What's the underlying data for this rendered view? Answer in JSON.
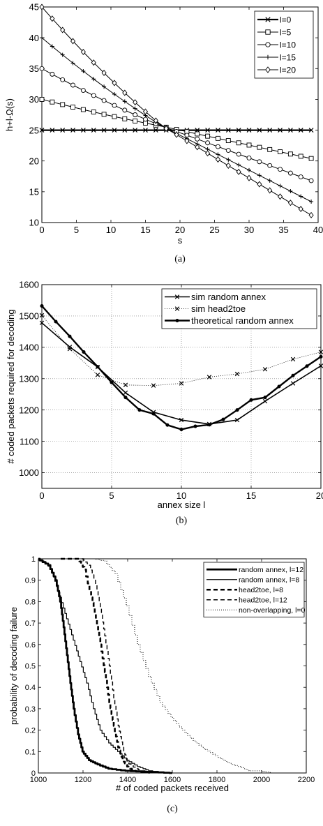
{
  "chart_data": [
    {
      "id": "a",
      "type": "line",
      "caption": "(a)",
      "xlabel": "s",
      "ylabel": "h+l-Ω(s)",
      "xlim": [
        0,
        40
      ],
      "ylim": [
        10,
        45
      ],
      "xticks": [
        0,
        5,
        10,
        15,
        20,
        25,
        30,
        35,
        40
      ],
      "yticks": [
        10,
        15,
        20,
        25,
        30,
        35,
        40,
        45
      ],
      "grid": false,
      "legend_position": "top-right",
      "x": [
        0,
        39
      ],
      "series": [
        {
          "name": "l=0",
          "marker": "x",
          "lw": 2.2,
          "start": 25,
          "end": 25
        },
        {
          "name": "l=5",
          "marker": "square",
          "lw": 1,
          "start": 30,
          "end": 20.4
        },
        {
          "name": "l=10",
          "marker": "circle",
          "lw": 1,
          "start": 35,
          "end": 16.8
        },
        {
          "name": "l=15",
          "marker": "plus",
          "lw": 1,
          "start": 40,
          "end": 13.4
        },
        {
          "name": "l=20",
          "marker": "diamond",
          "lw": 1,
          "start": 45,
          "end": 11.2
        }
      ],
      "curve_crossing": {
        "s": 17.5,
        "value": 25.6
      }
    },
    {
      "id": "b",
      "type": "line",
      "caption": "(b)",
      "xlabel": "annex size l",
      "ylabel": "# coded packets required for decoding",
      "xlim": [
        0,
        20
      ],
      "ylim": [
        950,
        1600
      ],
      "xticks": [
        0,
        5,
        10,
        15,
        20
      ],
      "xtick_labels": [
        "0",
        "5",
        "10",
        "15",
        "20"
      ],
      "yticks": [
        1000,
        1100,
        1200,
        1300,
        1400,
        1500,
        1600
      ],
      "grid": true,
      "legend_position": "top-right",
      "series": [
        {
          "name": "sim random annex",
          "marker": "x",
          "lw": 1.6,
          "dash": "",
          "x": [
            0,
            2,
            4,
            6,
            8,
            10,
            12,
            14,
            16,
            18,
            20
          ],
          "values": [
            1478,
            1401,
            1337,
            1255,
            1193,
            1168,
            1155,
            1168,
            1228,
            1285,
            1341
          ]
        },
        {
          "name": "sim head2toe",
          "marker": "x",
          "lw": 0.8,
          "dash": "1,2",
          "x": [
            0,
            2,
            4,
            6,
            8,
            10,
            12,
            14,
            16,
            18,
            20
          ],
          "values": [
            1502,
            1395,
            1312,
            1280,
            1278,
            1285,
            1305,
            1315,
            1330,
            1362,
            1385
          ]
        },
        {
          "name": "theoretical random annex",
          "marker": "dot",
          "lw": 2.4,
          "dash": "",
          "x": [
            0,
            1,
            2,
            3,
            4,
            5,
            6,
            7,
            8,
            9,
            10,
            11,
            12,
            13,
            14,
            15,
            16,
            17,
            18,
            19,
            20
          ],
          "values": [
            1532,
            1482,
            1435,
            1385,
            1338,
            1288,
            1240,
            1200,
            1188,
            1152,
            1138,
            1148,
            1153,
            1170,
            1200,
            1232,
            1240,
            1275,
            1310,
            1340,
            1370
          ]
        }
      ]
    },
    {
      "id": "c",
      "type": "line",
      "caption": "(c)",
      "xlabel": "# of coded packets received",
      "ylabel": "probability of decoding failure",
      "xlim": [
        1000,
        2200
      ],
      "ylim": [
        0,
        1
      ],
      "xticks": [
        1000,
        1200,
        1400,
        1600,
        1800,
        2000,
        2200
      ],
      "yticks": [
        0,
        0.1,
        0.2,
        0.3,
        0.4,
        0.5,
        0.6,
        0.7,
        0.8,
        0.9,
        1
      ],
      "ytick_labels": [
        "0",
        "0.1",
        "0.2",
        "0.3",
        "0.4",
        "0.5",
        "0.6",
        "0.7",
        "0.8",
        "0.9",
        "1"
      ],
      "grid": false,
      "legend_position": "top-right",
      "series": [
        {
          "name": "random annex, l=12",
          "lw": 2.8,
          "dash": "",
          "x": [
            1000,
            1050,
            1080,
            1100,
            1115,
            1130,
            1145,
            1160,
            1180,
            1200,
            1230,
            1270,
            1320,
            1400,
            1500,
            1600
          ],
          "values": [
            1,
            0.97,
            0.9,
            0.8,
            0.68,
            0.55,
            0.42,
            0.3,
            0.18,
            0.1,
            0.06,
            0.04,
            0.02,
            0.01,
            0.005,
            0
          ]
        },
        {
          "name": "random annex, l=8",
          "lw": 1.2,
          "dash": "",
          "x": [
            1000,
            1040,
            1070,
            1100,
            1130,
            1160,
            1190,
            1220,
            1250,
            1280,
            1320,
            1360,
            1400,
            1450,
            1500,
            1600
          ],
          "values": [
            1,
            0.98,
            0.92,
            0.82,
            0.72,
            0.62,
            0.52,
            0.42,
            0.3,
            0.2,
            0.14,
            0.1,
            0.06,
            0.03,
            0.01,
            0
          ]
        },
        {
          "name": "head2toe, l=8",
          "lw": 2.6,
          "dash": "6,4",
          "x": [
            1100,
            1180,
            1210,
            1240,
            1260,
            1280,
            1300,
            1320,
            1340,
            1360,
            1380,
            1400,
            1430,
            1480
          ],
          "values": [
            1,
            1,
            0.95,
            0.82,
            0.72,
            0.6,
            0.47,
            0.33,
            0.22,
            0.12,
            0.06,
            0.03,
            0.01,
            0
          ]
        },
        {
          "name": "head2toe, l=12",
          "lw": 1.4,
          "dash": "6,4",
          "x": [
            1100,
            1200,
            1230,
            1260,
            1280,
            1300,
            1320,
            1340,
            1360,
            1380,
            1400,
            1440,
            1500
          ],
          "values": [
            1,
            1,
            0.97,
            0.88,
            0.77,
            0.64,
            0.5,
            0.35,
            0.22,
            0.12,
            0.05,
            0.02,
            0
          ]
        },
        {
          "name": "non-overlapping, l=0",
          "lw": 1,
          "dash": "1,2",
          "x": [
            1250,
            1300,
            1350,
            1400,
            1450,
            1500,
            1550,
            1600,
            1650,
            1700,
            1750,
            1800,
            1850,
            1900,
            1950,
            2000,
            2050
          ],
          "values": [
            1,
            0.99,
            0.93,
            0.78,
            0.6,
            0.45,
            0.33,
            0.26,
            0.2,
            0.15,
            0.11,
            0.08,
            0.05,
            0.03,
            0.01,
            0.01,
            0
          ]
        }
      ]
    }
  ]
}
